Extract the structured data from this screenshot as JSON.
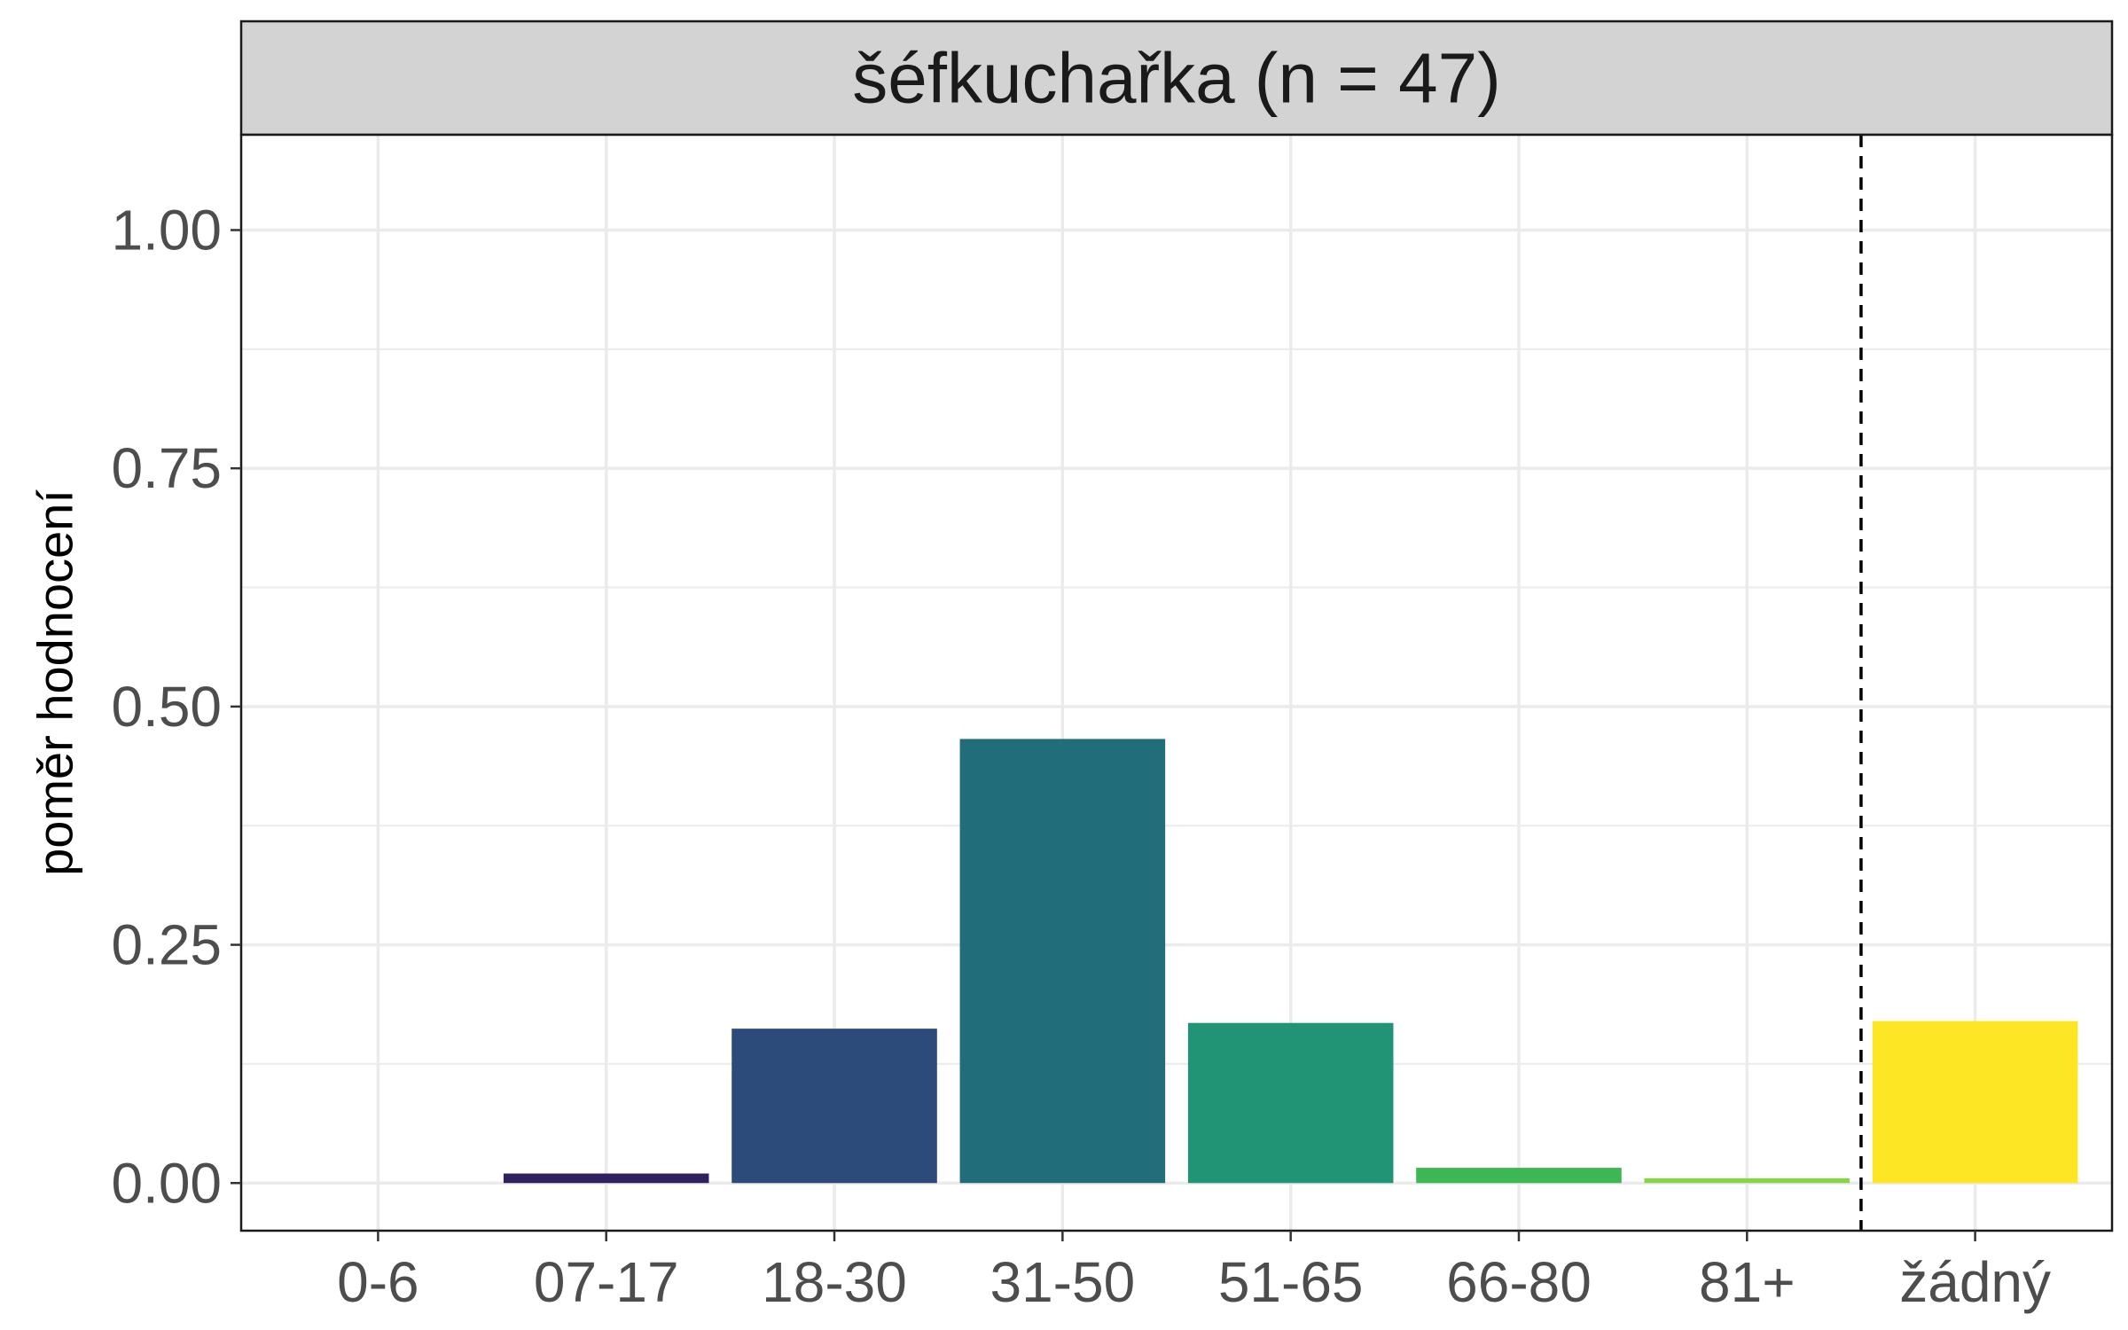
{
  "chart_data": {
    "type": "bar",
    "facet_title": "šéfkuchařka (n = 47)",
    "ylabel": "poměr hodnocení",
    "xlabel": "",
    "categories": [
      "0-6",
      "07-17",
      "18-30",
      "31-50",
      "51-65",
      "66-80",
      "81+",
      "žádný"
    ],
    "values": [
      0.0,
      0.01,
      0.162,
      0.466,
      0.168,
      0.016,
      0.005,
      0.17
    ],
    "colors": [
      "#440154",
      "#31205e",
      "#2c4a7a",
      "#216e7a",
      "#209474",
      "#3cb753",
      "#84d547",
      "#fde724"
    ],
    "ylim": [
      -0.05,
      1.1
    ],
    "yticks": [
      0.0,
      0.25,
      0.5,
      0.75,
      1.0
    ],
    "ytick_labels": [
      "0.00",
      "0.25",
      "0.50",
      "0.75",
      "1.00"
    ],
    "reference_line": {
      "style": "dashed",
      "between": [
        "81+",
        "žádný"
      ]
    },
    "grid": true,
    "legend": "none"
  }
}
